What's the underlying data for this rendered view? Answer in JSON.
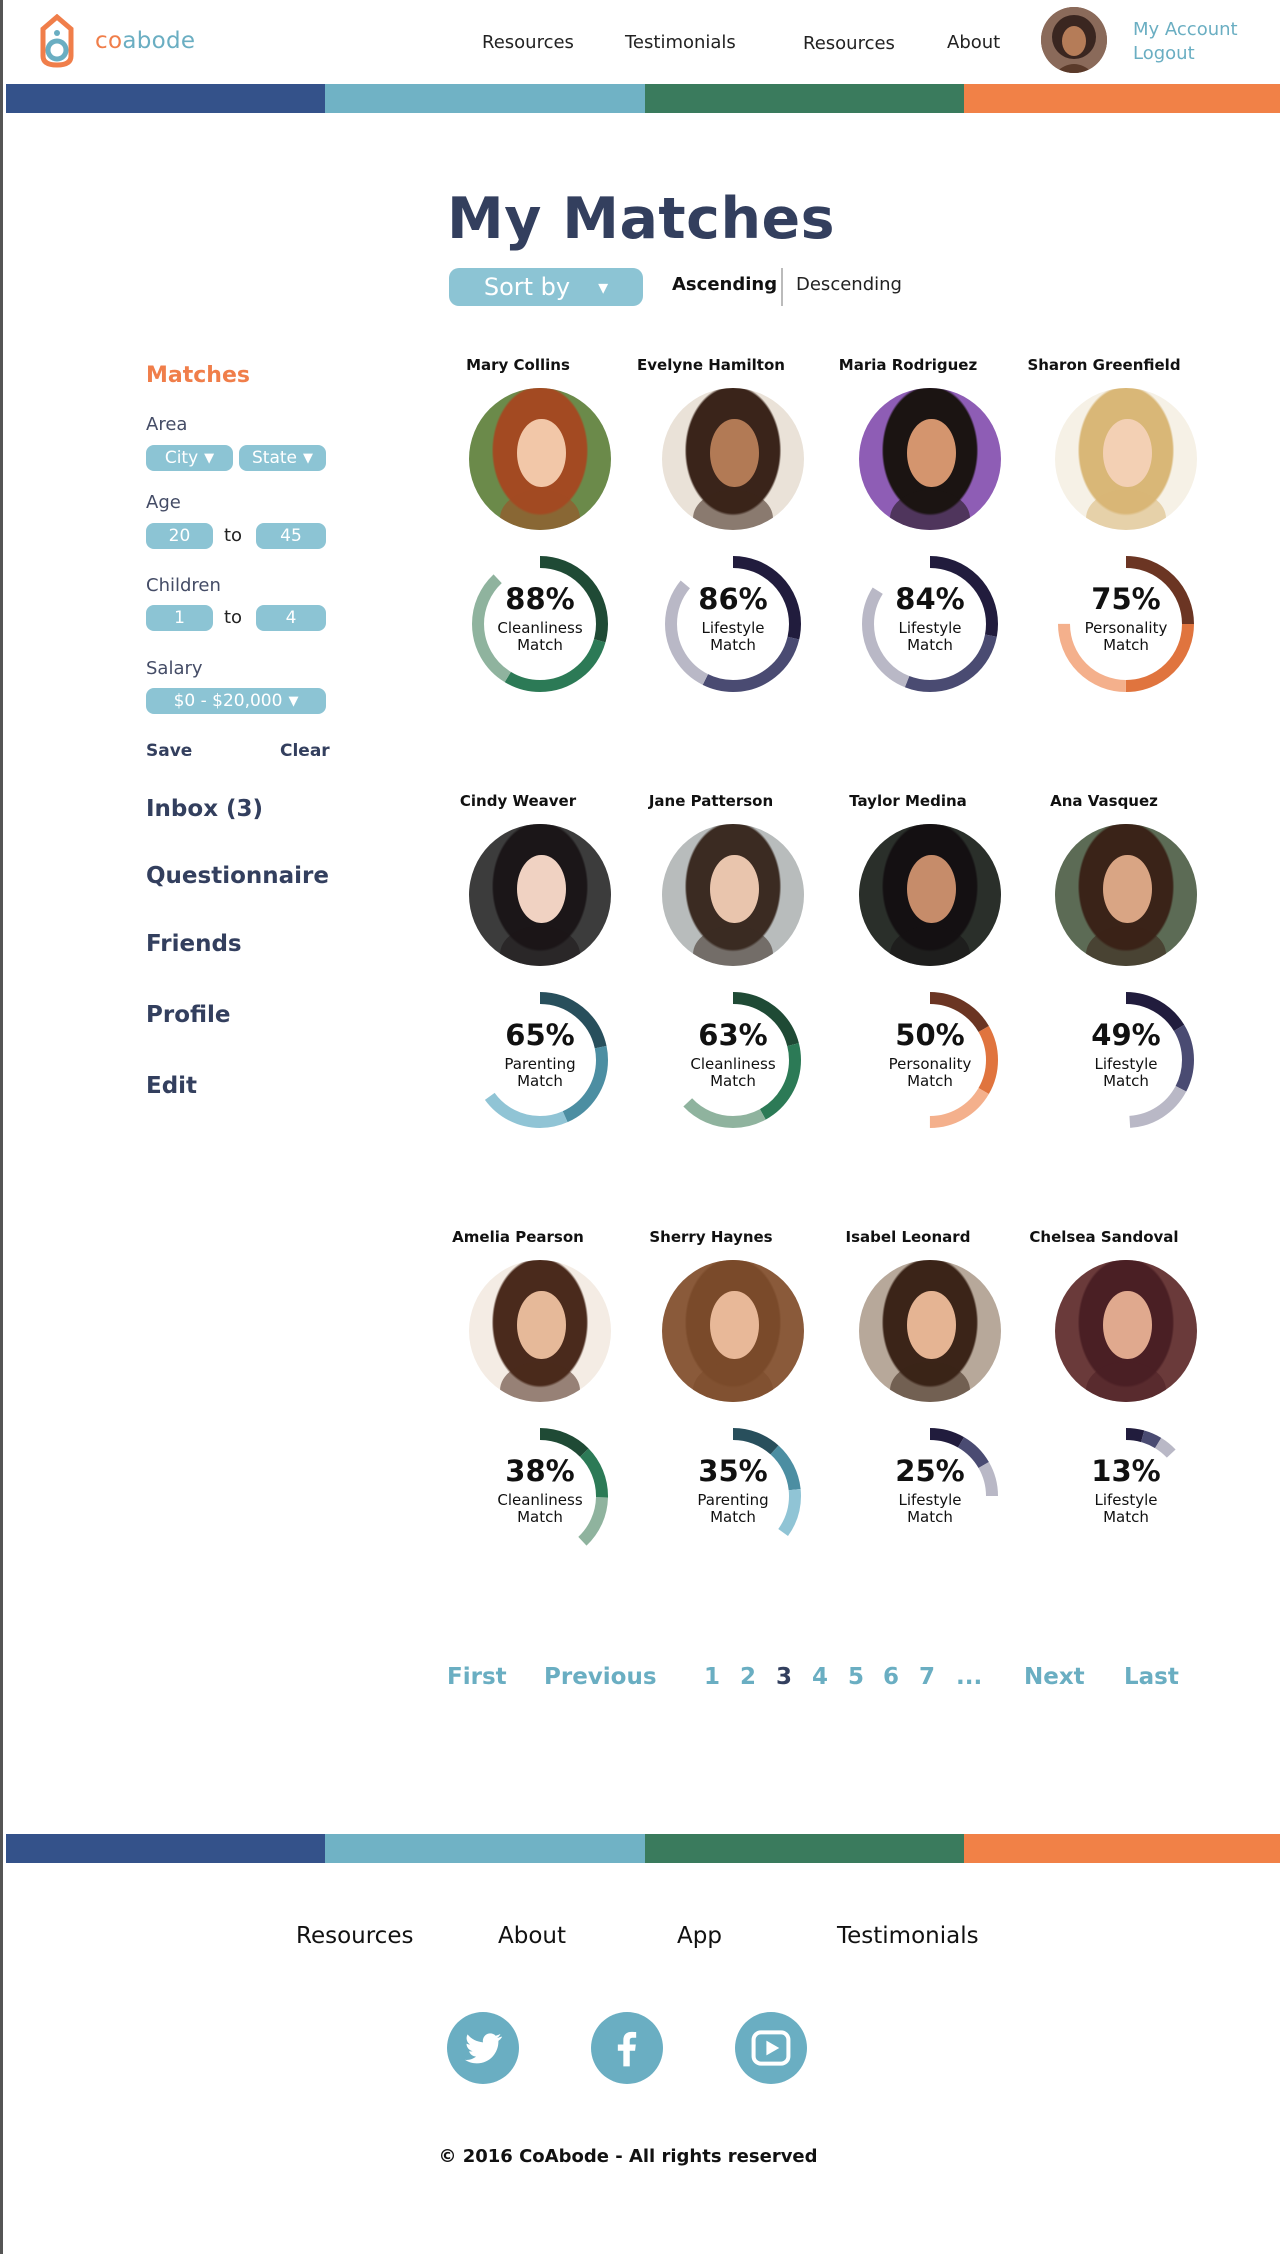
{
  "brand": {
    "name_part1": "co",
    "name_part2": "abode"
  },
  "nav": [
    {
      "label": "Resources"
    },
    {
      "label": "Testimonials"
    },
    {
      "label": "Resources"
    },
    {
      "label": "About"
    }
  ],
  "account": {
    "my_account": "My Account",
    "logout": "Logout"
  },
  "stripe_colors": [
    "#34528a",
    "#70b2c5",
    "#3a7b5d",
    "#f18147"
  ],
  "title": "My Matches",
  "sort": {
    "label": "Sort by",
    "arrow": "▾",
    "ascending": "Ascending",
    "descending": "Descending",
    "active": "Ascending"
  },
  "sidebar": {
    "heading": "Matches",
    "area": {
      "label": "Area",
      "city": "City",
      "state": "State"
    },
    "age": {
      "label": "Age",
      "min": "20",
      "to": "to",
      "max": "45"
    },
    "children": {
      "label": "Children",
      "min": "1",
      "to": "to",
      "max": "4"
    },
    "salary": {
      "label": "Salary",
      "value": "$0 - $20,000"
    },
    "save": "Save",
    "clear": "Clear",
    "links": [
      "Inbox (3)",
      "Questionnaire",
      "Friends",
      "Profile",
      "Edit"
    ]
  },
  "matches": [
    {
      "name": "Mary Collins",
      "percent": 88,
      "percent_label": "88%",
      "category": "Cleanliness",
      "match": "Match",
      "colors": [
        "#1f4a35",
        "#2c7a56",
        "#8fb39e"
      ],
      "hair": "#a34a22",
      "skin": "#f2c7a8",
      "bg": "#6b8a4a"
    },
    {
      "name": "Evelyne Hamilton",
      "percent": 86,
      "percent_label": "86%",
      "category": "Lifestyle",
      "match": "Match",
      "colors": [
        "#211c3d",
        "#4a4b72",
        "#b9b8c6"
      ],
      "hair": "#3a241a",
      "skin": "#b27a55",
      "bg": "#eae2d8"
    },
    {
      "name": "Maria Rodriguez",
      "percent": 84,
      "percent_label": "84%",
      "category": "Lifestyle",
      "match": "Match",
      "colors": [
        "#211c3d",
        "#4a4b72",
        "#b9b8c6"
      ],
      "hair": "#1b1412",
      "skin": "#d4956e",
      "bg": "#8e5db5"
    },
    {
      "name": "Sharon Greenfield",
      "percent": 75,
      "percent_label": "75%",
      "category": "Personality",
      "match": "Match",
      "colors": [
        "#6b3523",
        "#e0743e",
        "#f4b08c"
      ],
      "hair": "#d9b777",
      "skin": "#f3d0b4",
      "bg": "#f6f1e6"
    },
    {
      "name": "Cindy Weaver",
      "percent": 65,
      "percent_label": "65%",
      "category": "Parenting",
      "match": "Match",
      "colors": [
        "#284f5c",
        "#4c8ea2",
        "#90c4d5"
      ],
      "hair": "#1b1618",
      "skin": "#f0d2c2",
      "bg": "#3c3c3c"
    },
    {
      "name": "Jane Patterson",
      "percent": 63,
      "percent_label": "63%",
      "category": "Cleanliness",
      "match": "Match",
      "colors": [
        "#1f4a35",
        "#2c7a56",
        "#8fb39e"
      ],
      "hair": "#3b2b22",
      "skin": "#e9c5ad",
      "bg": "#b8bcbc"
    },
    {
      "name": "Taylor Medina",
      "percent": 50,
      "percent_label": "50%",
      "category": "Personality",
      "match": "Match",
      "colors": [
        "#6b3523",
        "#e0743e",
        "#f4b08c"
      ],
      "hair": "#141012",
      "skin": "#c68c6a",
      "bg": "#2a2f2a"
    },
    {
      "name": "Ana Vasquez",
      "percent": 49,
      "percent_label": "49%",
      "category": "Lifestyle",
      "match": "Match",
      "colors": [
        "#211c3d",
        "#4a4b72",
        "#b9b8c6"
      ],
      "hair": "#3a2318",
      "skin": "#d9a584",
      "bg": "#5c6b55"
    },
    {
      "name": "Amelia Pearson",
      "percent": 38,
      "percent_label": "38%",
      "category": "Cleanliness",
      "match": "Match",
      "colors": [
        "#1f4a35",
        "#2c7a56",
        "#8fb39e"
      ],
      "hair": "#4a2a1c",
      "skin": "#e6b999",
      "bg": "#f4ece4"
    },
    {
      "name": "Sherry Haynes",
      "percent": 35,
      "percent_label": "35%",
      "category": "Parenting",
      "match": "Match",
      "colors": [
        "#284f5c",
        "#4c8ea2",
        "#90c4d5"
      ],
      "hair": "#7a4a2a",
      "skin": "#e8b898",
      "bg": "#8a5a3a"
    },
    {
      "name": "Isabel Leonard",
      "percent": 25,
      "percent_label": "25%",
      "category": "Lifestyle",
      "match": "Match",
      "colors": [
        "#211c3d",
        "#4a4b72",
        "#b9b8c6"
      ],
      "hair": "#3b2418",
      "skin": "#e5b493",
      "bg": "#b7a89a"
    },
    {
      "name": "Chelsea Sandoval",
      "percent": 13,
      "percent_label": "13%",
      "category": "Lifestyle",
      "match": "Match",
      "colors": [
        "#211c3d",
        "#4a4b72",
        "#b9b8c6"
      ],
      "hair": "#4a1f24",
      "skin": "#e0a98e",
      "bg": "#6a3a3a"
    }
  ],
  "pagination": {
    "first": "First",
    "previous": "Previous",
    "pages": [
      "1",
      "2",
      "3",
      "4",
      "5",
      "6",
      "7",
      "..."
    ],
    "current": "3",
    "next": "Next",
    "last": "Last"
  },
  "footer": {
    "links": [
      "Resources",
      "About",
      "App",
      "Testimonials"
    ],
    "social": [
      "twitter-icon",
      "facebook-icon",
      "youtube-icon"
    ],
    "copyright": "© 2016 CoAbode - All rights reserved"
  }
}
